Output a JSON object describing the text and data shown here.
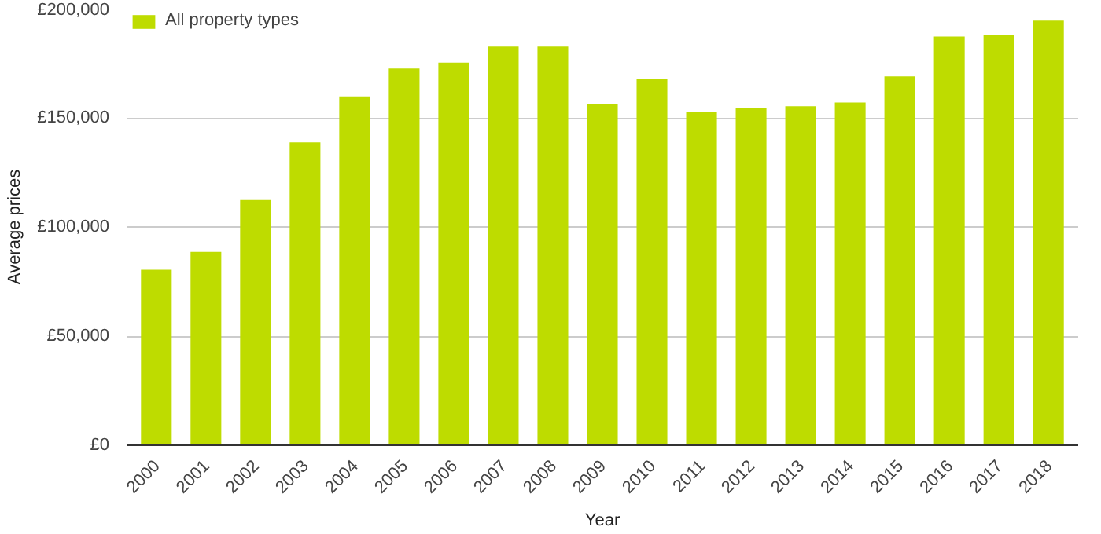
{
  "chart_data": {
    "type": "bar",
    "xlabel": "Year",
    "ylabel": "Average prices",
    "categories": [
      "2000",
      "2001",
      "2002",
      "2003",
      "2004",
      "2005",
      "2006",
      "2007",
      "2008",
      "2009",
      "2010",
      "2011",
      "2012",
      "2013",
      "2014",
      "2015",
      "2016",
      "2017",
      "2018"
    ],
    "series": [
      {
        "name": "All property types",
        "color": "#bedc00",
        "values": [
          80400,
          88600,
          112300,
          138800,
          159800,
          172600,
          175300,
          182600,
          182600,
          156200,
          168000,
          152500,
          154300,
          155300,
          157000,
          169000,
          187200,
          188100,
          194500
        ]
      }
    ],
    "ylim": [
      0,
      200000
    ],
    "yticks": [
      {
        "value": 0,
        "label": "£0"
      },
      {
        "value": 50000,
        "label": "£50,000"
      },
      {
        "value": 100000,
        "label": "£100,000"
      },
      {
        "value": 150000,
        "label": "£150,000"
      },
      {
        "value": 200000,
        "label": "£200,000"
      }
    ],
    "grid": "y",
    "legend": "top left"
  }
}
